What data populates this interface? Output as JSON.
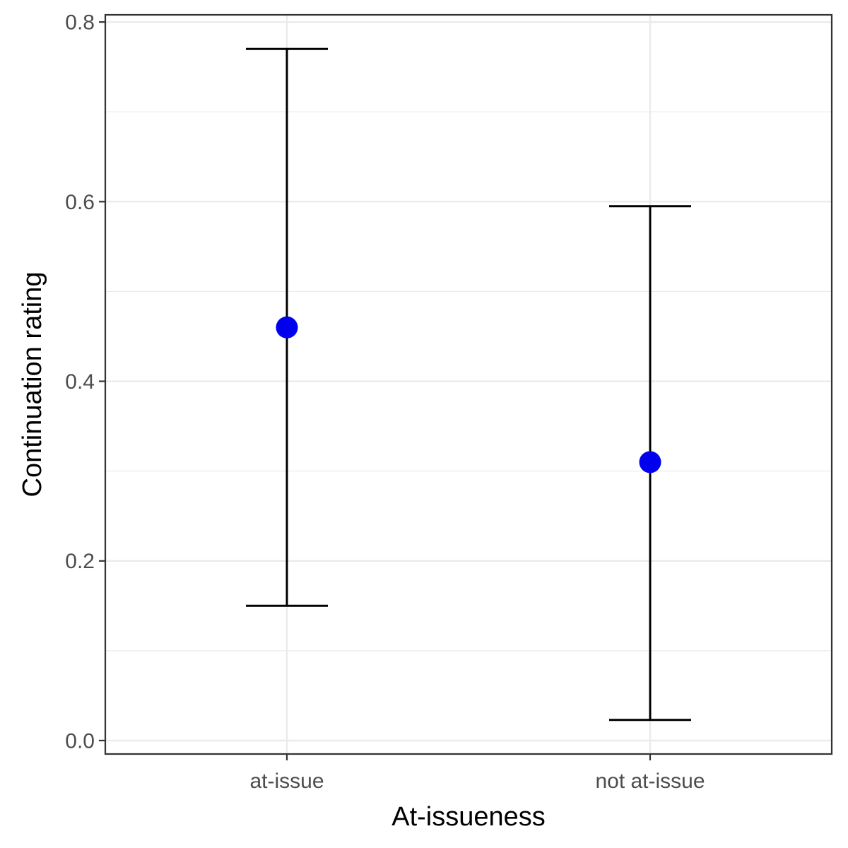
{
  "chart_data": {
    "type": "scatter",
    "categories": [
      "at-issue",
      "not at-issue"
    ],
    "series": [
      {
        "values": [
          0.46,
          0.31
        ],
        "lower": [
          0.15,
          0.023
        ],
        "upper": [
          0.77,
          0.595
        ]
      }
    ],
    "xlabel": "At-issueness",
    "ylabel": "Continuation rating",
    "yticks": [
      0.0,
      0.2,
      0.4,
      0.6,
      0.8
    ],
    "ytick_labels": [
      "0.0",
      "0.2",
      "0.4",
      "0.6",
      "0.8"
    ],
    "ylim": [
      -0.015,
      0.808
    ],
    "grid": true,
    "colors": {
      "point": "#0000ee",
      "errorbar": "#000000",
      "grid": "#ebebeb",
      "panel_border": "#333333"
    }
  }
}
